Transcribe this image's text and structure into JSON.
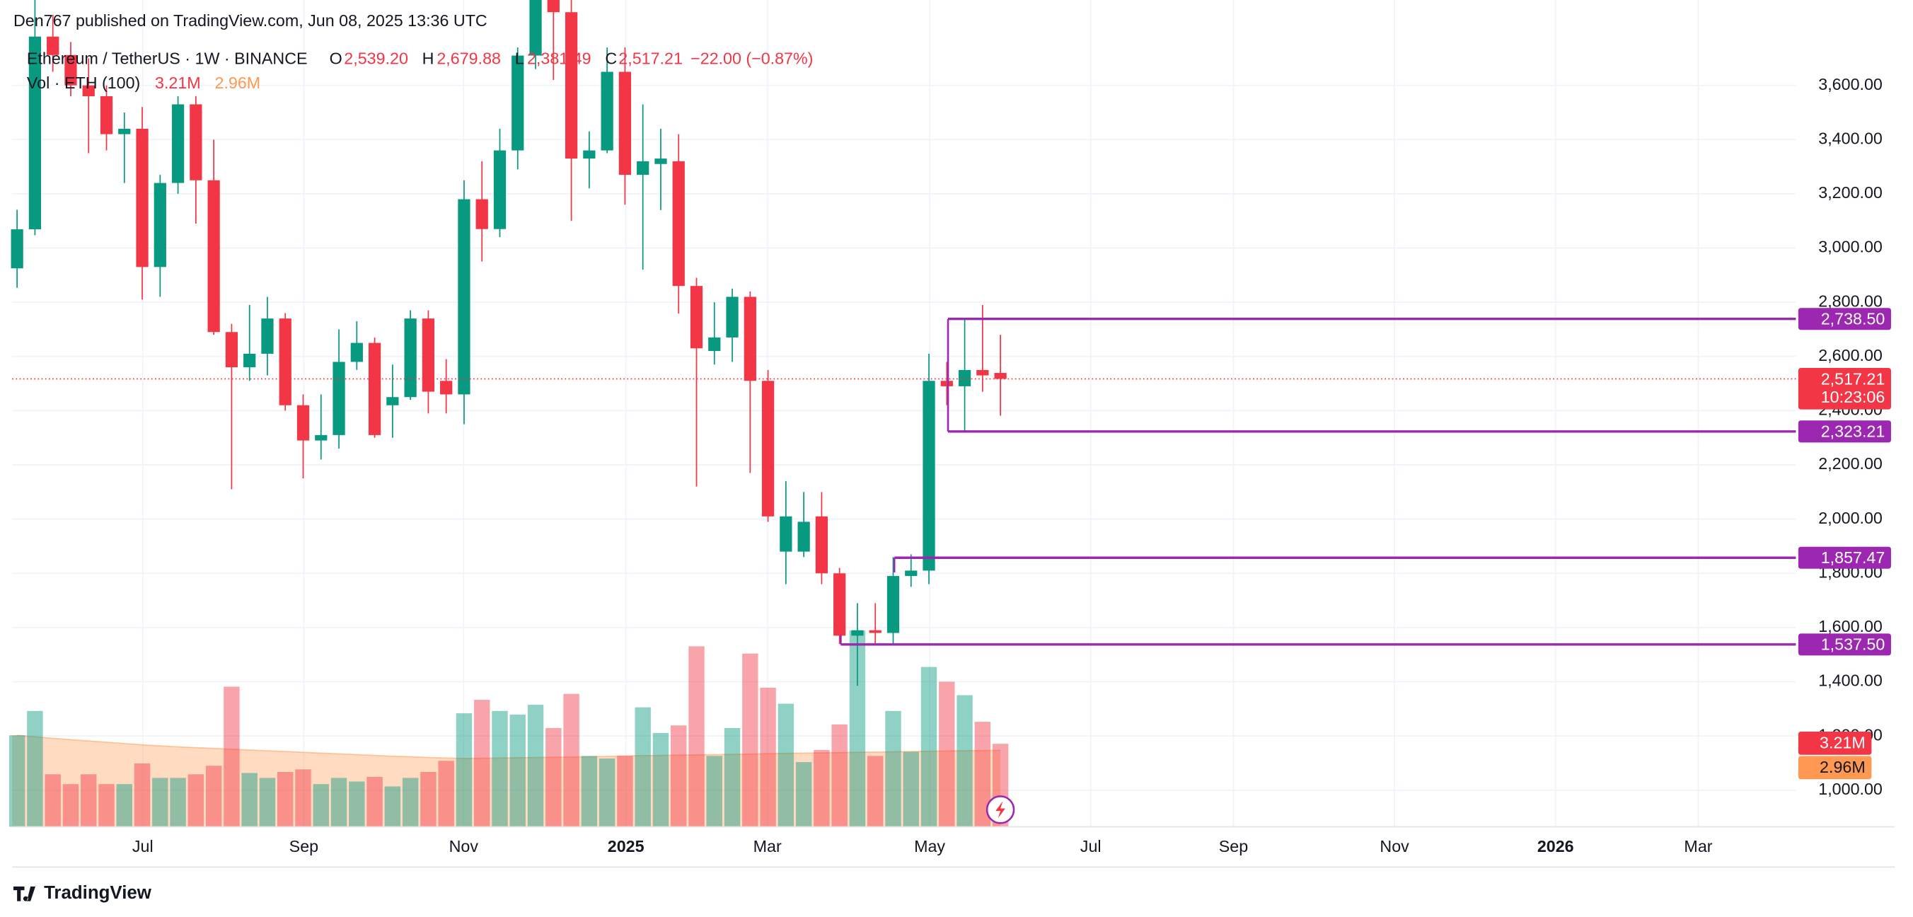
{
  "chart_data": {
    "type": "candlestick",
    "header": "Den767 published on TradingView.com, Jun 08, 2025 13:36 UTC",
    "legend": {
      "symbol": "Ethereum / TetherUS · 1W · BINANCE",
      "o": "O",
      "open": "2,539.20",
      "h": "H",
      "high": "2,679.88",
      "l": "L",
      "low": "2,381.49",
      "c": "C",
      "close": "2,517.21",
      "change": "−22.00 (−0.87%)",
      "volume_name": "Vol · ETH (100)"
    },
    "footer": "TradingView",
    "up_color": "#089981",
    "down_color": "#f23645",
    "level_color": "#9c27b0",
    "ma_color": "#ff9850",
    "open": [
      2925,
      3069,
      3780,
      3712,
      3600,
      3560,
      3420,
      3440,
      2930,
      3240,
      3530,
      3250,
      2690,
      2560,
      2610,
      2740,
      2420,
      2290,
      2310,
      2580,
      2650,
      2420,
      2450,
      2740,
      2510,
      2460,
      3180,
      3070,
      3360,
      3710,
      3990,
      3870,
      3330,
      3360,
      3650,
      3270,
      3310,
      3320,
      2860,
      2620,
      2670,
      2820,
      2510,
      1880,
      1880,
      2010,
      1800,
      1570,
      1590,
      1580,
      1790,
      1810,
      2510,
      2490,
      2550,
      2539.2
    ],
    "high": [
      3141,
      3970,
      3860,
      3760,
      3700,
      3600,
      3500,
      3520,
      3270,
      3560,
      3560,
      3400,
      2720,
      2790,
      2820,
      2760,
      2460,
      2460,
      2700,
      2730,
      2670,
      2570,
      2770,
      2770,
      2590,
      3250,
      3320,
      3440,
      3740,
      4110,
      4110,
      3990,
      3430,
      3740,
      3740,
      3530,
      3440,
      3420,
      2890,
      2800,
      2850,
      2840,
      2550,
      2140,
      2100,
      2100,
      1820,
      1690,
      1690,
      1860,
      1870,
      2610,
      2580,
      2738.5,
      2790,
      2679.88
    ],
    "low": [
      2853,
      3047,
      3650,
      3560,
      3350,
      3360,
      3240,
      2810,
      2820,
      3200,
      3090,
      2680,
      2110,
      2510,
      2530,
      2400,
      2150,
      2220,
      2260,
      2550,
      2300,
      2300,
      2440,
      2390,
      2390,
      2350,
      2950,
      3040,
      3290,
      3660,
      3620,
      3100,
      3220,
      3350,
      3160,
      2920,
      3140,
      2758,
      2120,
      2570,
      2580,
      2170,
      1990,
      1760,
      1860,
      1760,
      1540,
      1385,
      1540,
      1540,
      1750,
      1760,
      2420,
      2323.21,
      2470,
      2381.49
    ],
    "close": [
      3069,
      3780,
      3712,
      3600,
      3560,
      3420,
      3440,
      2930,
      3240,
      3530,
      3250,
      2690,
      2560,
      2610,
      2740,
      2420,
      2290,
      2310,
      2580,
      2650,
      2310,
      2450,
      2740,
      2470,
      2460,
      3180,
      3070,
      3360,
      3710,
      3990,
      3870,
      3330,
      3360,
      3650,
      3270,
      3320,
      3330,
      2860,
      2630,
      2670,
      2820,
      2510,
      2010,
      2010,
      1990,
      1800,
      1570,
      1590,
      1580,
      1790,
      1810,
      2510,
      2490,
      2550,
      2530,
      2517.21
    ],
    "ylim": [
      865,
      3780
    ],
    "yticks": [
      {
        "value": 1000,
        "label": "1,000.00"
      },
      {
        "value": 1200,
        "label": "1,200.00"
      },
      {
        "value": 1400,
        "label": "1,400.00"
      },
      {
        "value": 1600,
        "label": "1,600.00"
      },
      {
        "value": 1800,
        "label": "1,800.00"
      },
      {
        "value": 2000,
        "label": "2,000.00"
      },
      {
        "value": 2200,
        "label": "2,200.00"
      },
      {
        "value": 2400,
        "label": "2,400.00"
      },
      {
        "value": 2600,
        "label": "2,600.00"
      },
      {
        "value": 2800,
        "label": "2,800.00"
      },
      {
        "value": 3000,
        "label": "3,000.00"
      },
      {
        "value": 3200,
        "label": "3,200.00"
      },
      {
        "value": 3400,
        "label": "3,400.00"
      },
      {
        "value": 3600,
        "label": "3,600.00"
      }
    ],
    "xticks": [
      "Jul",
      "Sep",
      "Nov",
      "2025",
      "Mar",
      "May",
      "Jul",
      "Sep",
      "Nov",
      "2026",
      "Mar"
    ],
    "grid": true,
    "levels": [
      {
        "value": 2738.5,
        "label": "2,738.50"
      },
      {
        "value": 2323.21,
        "label": "2,323.21"
      },
      {
        "value": 1857.47,
        "label": "1,857.47"
      },
      {
        "value": 1537.5,
        "label": "1,537.50"
      }
    ],
    "countdown": "10:23:06",
    "volume_ylim": [
      0,
      30
    ],
    "volume": {
      "values": [
        3.54,
        4.48,
        2.03,
        1.65,
        2.03,
        1.65,
        1.65,
        2.45,
        1.89,
        1.89,
        2.03,
        2.36,
        5.42,
        2.08,
        1.89,
        2.12,
        2.22,
        1.65,
        1.89,
        1.75,
        1.93,
        1.56,
        1.89,
        2.12,
        2.55,
        4.39,
        4.91,
        4.48,
        4.34,
        4.72,
        3.82,
        5.14,
        2.74,
        2.64,
        2.74,
        4.62,
        3.63,
        3.92,
        6.98,
        2.74,
        3.82,
        6.7,
        5.38,
        4.76,
        2.5,
        2.97,
        3.96,
        7.59,
        2.74,
        4.48,
        2.9,
        6.18,
        5.61,
        5.09,
        4.06,
        3.21
      ],
      "value_labels": [
        null,
        null,
        null,
        null,
        null,
        null,
        null,
        null,
        null,
        null,
        null,
        null,
        null,
        null,
        null,
        null,
        null,
        null,
        null,
        null,
        null,
        null,
        null,
        null,
        null,
        null,
        null,
        null,
        null,
        null,
        null,
        null,
        null,
        null,
        null,
        null,
        null,
        null,
        null,
        null,
        null,
        null,
        null,
        null,
        null,
        null,
        null,
        null,
        null,
        null,
        null,
        null,
        null,
        null,
        null,
        "3.21M"
      ]
    },
    "volume_ma": {
      "values": [
        3.54,
        3.48,
        3.42,
        3.37,
        3.32,
        3.27,
        3.22,
        3.17,
        3.13,
        3.09,
        3.06,
        3.03,
        3.0,
        2.97,
        2.94,
        2.91,
        2.88,
        2.85,
        2.82,
        2.79,
        2.76,
        2.73,
        2.71,
        2.68,
        2.66,
        2.64,
        2.65,
        2.66,
        2.67,
        2.68,
        2.69,
        2.7,
        2.71,
        2.72,
        2.74,
        2.75,
        2.76,
        2.77,
        2.78,
        2.79,
        2.8,
        2.81,
        2.83,
        2.84,
        2.85,
        2.86,
        2.87,
        2.88,
        2.89,
        2.9,
        2.91,
        2.92,
        2.93,
        2.94,
        2.95,
        2.96
      ],
      "value_labels": [
        null,
        null,
        null,
        null,
        null,
        null,
        null,
        null,
        null,
        null,
        null,
        null,
        null,
        null,
        null,
        null,
        null,
        null,
        null,
        null,
        null,
        null,
        null,
        null,
        null,
        null,
        null,
        null,
        null,
        null,
        null,
        null,
        null,
        null,
        null,
        null,
        null,
        null,
        null,
        null,
        null,
        null,
        null,
        null,
        null,
        null,
        null,
        null,
        null,
        null,
        null,
        null,
        null,
        null,
        null,
        "2.96M"
      ]
    }
  }
}
